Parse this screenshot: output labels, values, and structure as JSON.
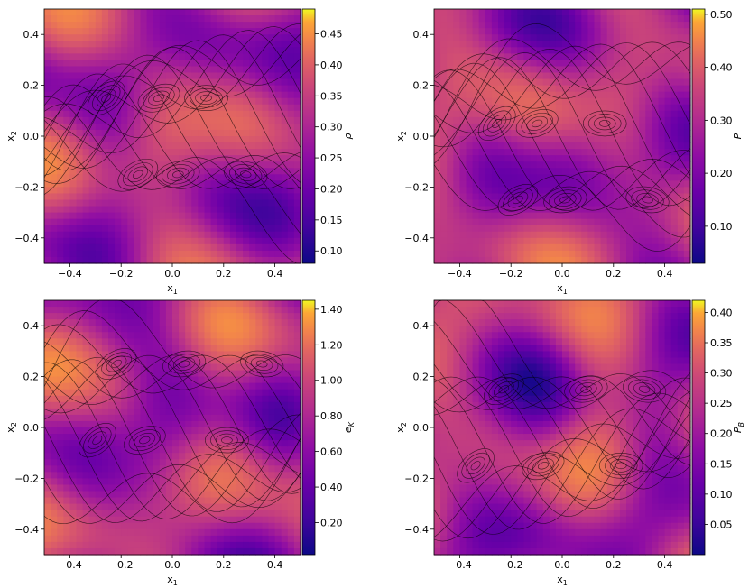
{
  "chart_data": [
    {
      "type": "heatmap",
      "title": "",
      "xlabel": "x1",
      "ylabel": "x2",
      "xlim": [
        -0.5,
        0.5
      ],
      "ylim": [
        -0.5,
        0.5
      ],
      "xticks": [
        -0.4,
        -0.2,
        0.0,
        0.2,
        0.4
      ],
      "yticks": [
        -0.4,
        -0.2,
        0.0,
        0.2,
        0.4
      ],
      "xtick_labels": [
        "−0.4",
        "−0.2",
        "0.0",
        "0.2",
        "0.4"
      ],
      "ytick_labels": [
        "−0.4",
        "−0.2",
        "0.0",
        "0.2",
        "0.4"
      ],
      "colorbar": {
        "label": "ρ",
        "range": [
          0.08,
          0.49
        ],
        "ticks": [
          0.1,
          0.15,
          0.2,
          0.25,
          0.3,
          0.35,
          0.4,
          0.45
        ],
        "tick_labels": [
          "0.10",
          "0.15",
          "0.20",
          "0.25",
          "0.30",
          "0.35",
          "0.40",
          "0.45"
        ],
        "colormap": "plasma"
      },
      "contours": true,
      "grid": false
    },
    {
      "type": "heatmap",
      "title": "",
      "xlabel": "x1",
      "ylabel": "x2",
      "xlim": [
        -0.5,
        0.5
      ],
      "ylim": [
        -0.5,
        0.5
      ],
      "xticks": [
        -0.4,
        -0.2,
        0.0,
        0.2,
        0.4
      ],
      "yticks": [
        -0.4,
        -0.2,
        0.0,
        0.2,
        0.4
      ],
      "xtick_labels": [
        "−0.4",
        "−0.2",
        "0.0",
        "0.2",
        "0.4"
      ],
      "ytick_labels": [
        "−0.4",
        "−0.2",
        "0.0",
        "0.2",
        "0.4"
      ],
      "colorbar": {
        "label": "P",
        "range": [
          0.03,
          0.51
        ],
        "ticks": [
          0.1,
          0.2,
          0.3,
          0.4,
          0.5
        ],
        "tick_labels": [
          "0.10",
          "0.20",
          "0.30",
          "0.40",
          "0.50"
        ],
        "colormap": "plasma"
      },
      "contours": true,
      "grid": false
    },
    {
      "type": "heatmap",
      "title": "",
      "xlabel": "x1",
      "ylabel": "x2",
      "xlim": [
        -0.5,
        0.5
      ],
      "ylim": [
        -0.5,
        0.5
      ],
      "xticks": [
        -0.4,
        -0.2,
        0.0,
        0.2,
        0.4
      ],
      "yticks": [
        -0.4,
        -0.2,
        0.0,
        0.2,
        0.4
      ],
      "xtick_labels": [
        "−0.4",
        "−0.2",
        "0.0",
        "0.2",
        "0.4"
      ],
      "ytick_labels": [
        "−0.4",
        "−0.2",
        "0.0",
        "0.2",
        "0.4"
      ],
      "colorbar": {
        "label": "eK",
        "range": [
          0.02,
          1.45
        ],
        "ticks": [
          0.2,
          0.4,
          0.6,
          0.8,
          1.0,
          1.2,
          1.4
        ],
        "tick_labels": [
          "0.20",
          "0.40",
          "0.60",
          "0.80",
          "1.00",
          "1.20",
          "1.40"
        ],
        "colormap": "plasma"
      },
      "contours": true,
      "grid": false
    },
    {
      "type": "heatmap",
      "title": "",
      "xlabel": "x1",
      "ylabel": "x2",
      "xlim": [
        -0.5,
        0.5
      ],
      "ylim": [
        -0.5,
        0.5
      ],
      "xticks": [
        -0.4,
        -0.2,
        0.0,
        0.2,
        0.4
      ],
      "yticks": [
        -0.4,
        -0.2,
        0.0,
        0.2,
        0.4
      ],
      "xtick_labels": [
        "−0.4",
        "−0.2",
        "0.0",
        "0.2",
        "0.4"
      ],
      "ytick_labels": [
        "−0.4",
        "−0.2",
        "0.0",
        "0.2",
        "0.4"
      ],
      "colorbar": {
        "label": "PB",
        "range": [
          0.0,
          0.42
        ],
        "ticks": [
          0.05,
          0.1,
          0.15,
          0.2,
          0.25,
          0.3,
          0.35,
          0.4
        ],
        "tick_labels": [
          "0.05",
          "0.10",
          "0.15",
          "0.20",
          "0.25",
          "0.30",
          "0.35",
          "0.40"
        ],
        "colormap": "plasma"
      },
      "contours": true,
      "grid": false
    }
  ]
}
